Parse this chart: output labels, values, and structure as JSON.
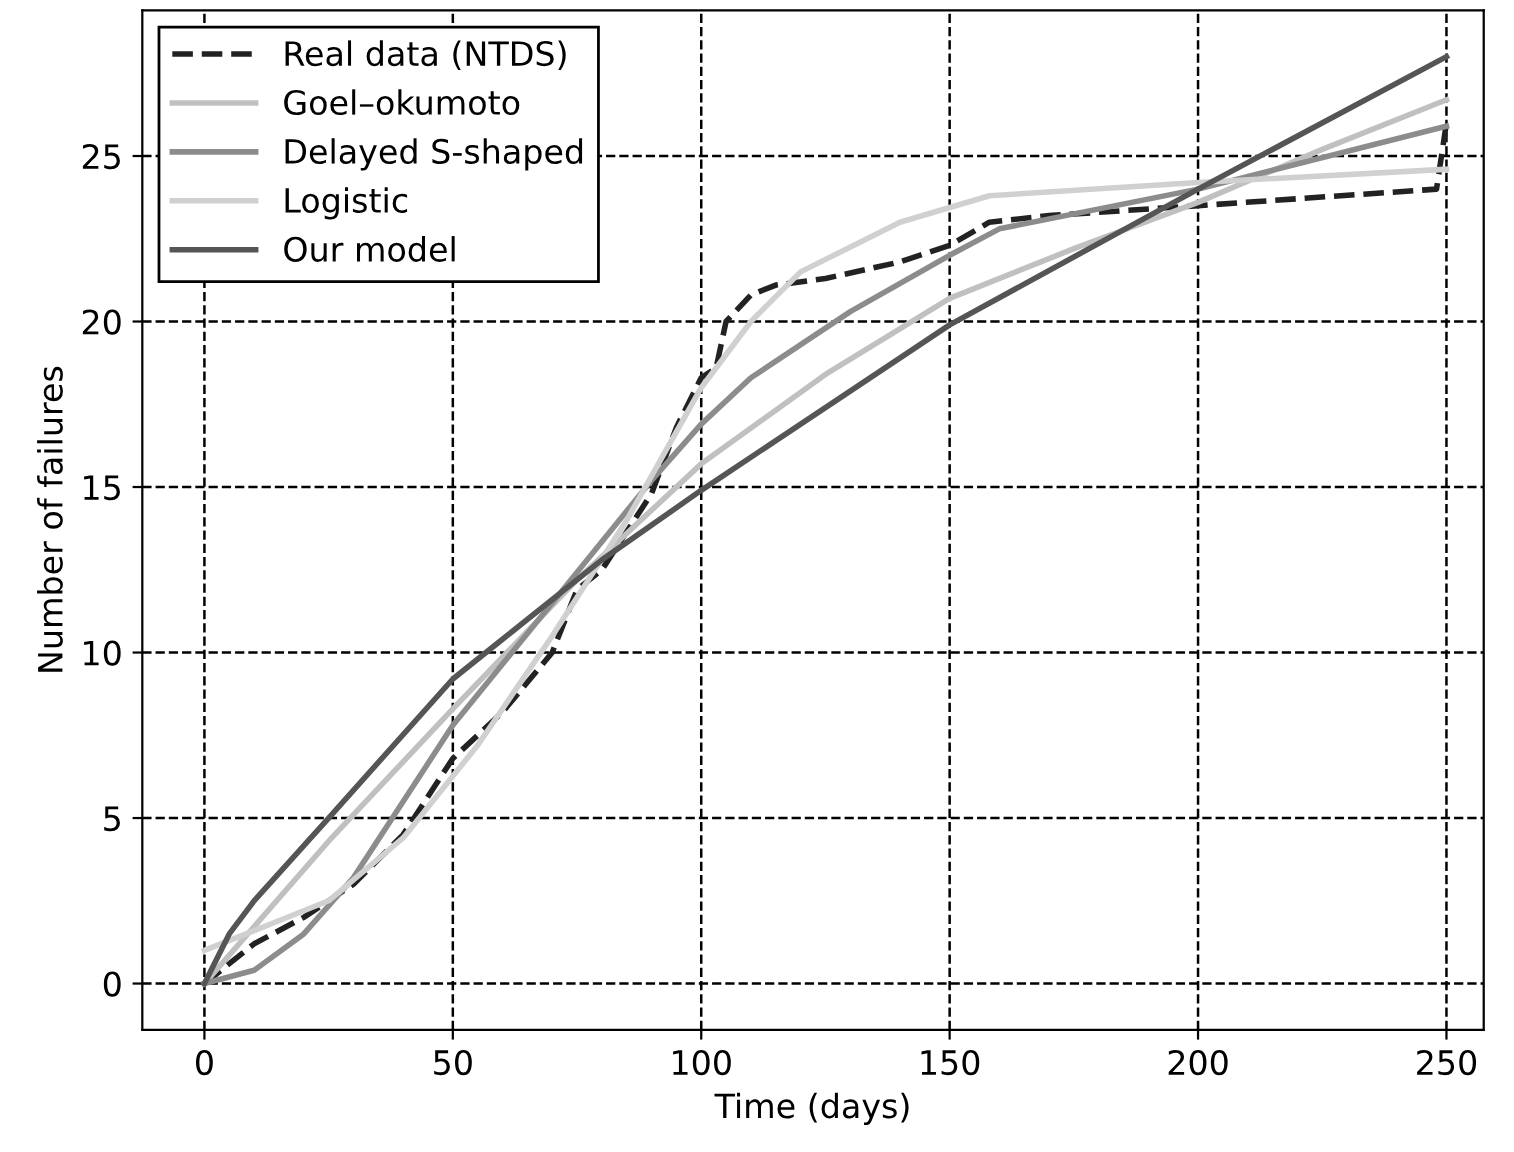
{
  "chart_data": {
    "type": "line",
    "xlabel": "Time (days)",
    "ylabel": "Number of failures",
    "xlim": [
      -12.5,
      257.5
    ],
    "ylim": [
      -1.4,
      29.4
    ],
    "xticks": [
      0,
      50,
      100,
      150,
      200,
      250
    ],
    "yticks": [
      0,
      5,
      10,
      15,
      20,
      25
    ],
    "grid": true,
    "legend": "top left",
    "series": [
      {
        "name": "Real data (NTDS)",
        "color": "#222222",
        "line_style": "dashed",
        "x": [
          0,
          10,
          20,
          30,
          40,
          50,
          60,
          70,
          75,
          80,
          90,
          95,
          100,
          103,
          105,
          110,
          115,
          125,
          140,
          150,
          158,
          170,
          200,
          248,
          250
        ],
        "values": [
          0,
          1.2,
          2,
          3,
          4.5,
          6.8,
          8.2,
          10,
          11.9,
          12.5,
          14.8,
          16.8,
          18.3,
          18.6,
          20,
          20.8,
          21.1,
          21.3,
          21.8,
          22.3,
          23,
          23.2,
          23.5,
          24,
          26
        ]
      },
      {
        "name": "Goel–okumoto",
        "color": "#c0c0c0",
        "line_style": "solid",
        "x": [
          0,
          25,
          50,
          75,
          100,
          125,
          150,
          175,
          200,
          225,
          250
        ],
        "values": [
          0,
          4.3,
          8.3,
          12.2,
          15.7,
          18.4,
          20.7,
          22.2,
          23.6,
          25.2,
          26.7
        ]
      },
      {
        "name": "Delayed S-shaped",
        "color": "#8c8c8c",
        "line_style": "solid",
        "x": [
          0,
          10,
          20,
          30,
          40,
          50,
          70,
          90,
          100,
          110,
          130,
          150,
          160,
          200,
          250
        ],
        "values": [
          0,
          0.4,
          1.5,
          3.2,
          5.5,
          7.8,
          11.5,
          15.2,
          16.9,
          18.3,
          20.3,
          22,
          22.8,
          24,
          25.9
        ]
      },
      {
        "name": "Logistic",
        "color": "#d0d0d0",
        "line_style": "solid",
        "x": [
          0,
          10,
          25,
          40,
          55,
          70,
          85,
          100,
          110,
          120,
          140,
          158,
          200,
          250
        ],
        "values": [
          1,
          1.6,
          2.5,
          4.4,
          7.2,
          10.5,
          14,
          18,
          20,
          21.5,
          23,
          23.8,
          24.2,
          24.6
        ]
      },
      {
        "name": "Our model",
        "color": "#555555",
        "line_style": "solid",
        "x": [
          0,
          5,
          10,
          25,
          50,
          60,
          80,
          100,
          150,
          200,
          250
        ],
        "values": [
          0,
          1.5,
          2.5,
          5.0,
          9.2,
          10.4,
          12.8,
          14.9,
          19.9,
          24,
          28
        ]
      }
    ]
  }
}
